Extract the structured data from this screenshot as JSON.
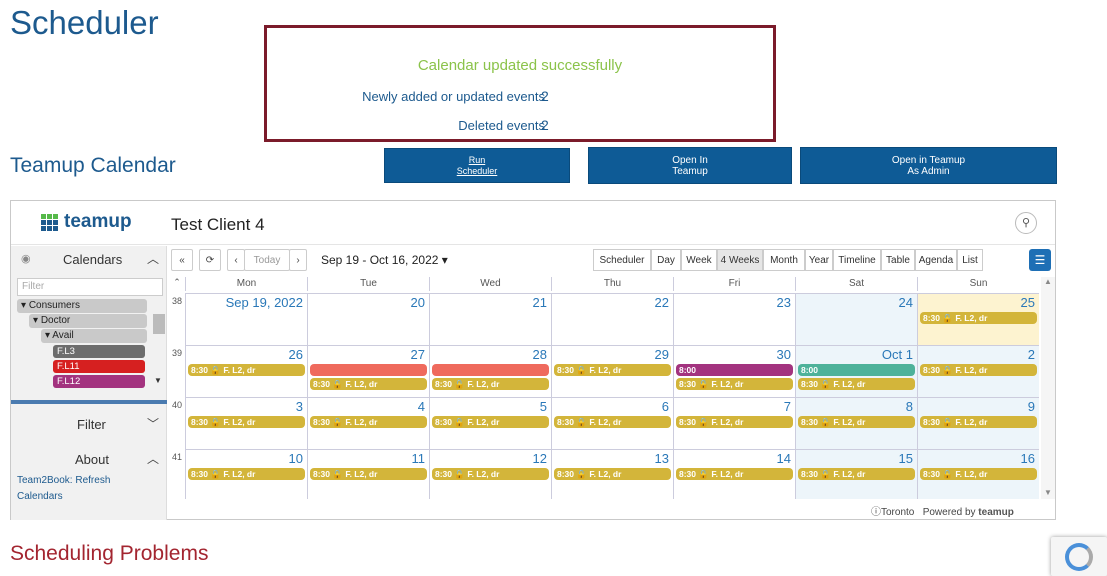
{
  "page": {
    "title": "Scheduler",
    "teamup_heading": "Teamup Calendar",
    "problems_heading": "Scheduling Problems"
  },
  "notice": {
    "message": "Calendar updated successfully",
    "added_label": "Newly added or updated events",
    "added_count": "2",
    "deleted_label": "Deleted events",
    "deleted_count": "2"
  },
  "buttons": {
    "run_line1": "Run",
    "run_line2": "Scheduler",
    "open_line1": "Open In",
    "open_line2": "Teamup",
    "admin_line1": "Open in Teamup",
    "admin_line2": "As Admin"
  },
  "calendar": {
    "logo": "teamup",
    "client": "Test Client 4",
    "sidebar": {
      "calendars": "Calendars",
      "filter_placeholder": "Filter",
      "filter": "Filter",
      "about": "About",
      "tree": [
        "Consumers",
        "Doctor",
        "Avail"
      ],
      "cals": [
        {
          "label": "F.L3",
          "color": "#6d6d6d"
        },
        {
          "label": "F.L11",
          "color": "#d62020"
        },
        {
          "label": "F.L12",
          "color": "#a3337f"
        }
      ],
      "link1": "Team2Book: Refresh",
      "link2": "Calendars"
    },
    "toolbar": {
      "today": "Today",
      "range": "Sep 19 - Oct 16, 2022",
      "views": [
        "Scheduler",
        "Day",
        "Week",
        "4 Weeks",
        "Month",
        "Year",
        "Timeline",
        "Table",
        "Agenda",
        "List"
      ],
      "active_view": "4 Weeks"
    },
    "days": [
      "Mon",
      "Tue",
      "Wed",
      "Thu",
      "Fri",
      "Sat",
      "Sun"
    ],
    "weeks": [
      {
        "num": "38",
        "dates": [
          "Sep 19, 2022",
          "20",
          "21",
          "22",
          "23",
          "24",
          "25"
        ]
      },
      {
        "num": "39",
        "dates": [
          "26",
          "27",
          "28",
          "29",
          "30",
          "Oct 1",
          "2"
        ]
      },
      {
        "num": "40",
        "dates": [
          "3",
          "4",
          "5",
          "6",
          "7",
          "8",
          "9"
        ]
      },
      {
        "num": "41",
        "dates": [
          "10",
          "11",
          "12",
          "13",
          "14",
          "15",
          "16"
        ]
      }
    ],
    "event_label": "8:30 🔒 F. L2, dr",
    "time_label": "8:00",
    "colors": {
      "gold": "#d3b53a",
      "red": "#ef6a5d",
      "purple": "#a3337f",
      "teal": "#4eb29a"
    },
    "footer": {
      "tz": "Toronto",
      "powered": "Powered by",
      "brand": "teamup"
    }
  }
}
